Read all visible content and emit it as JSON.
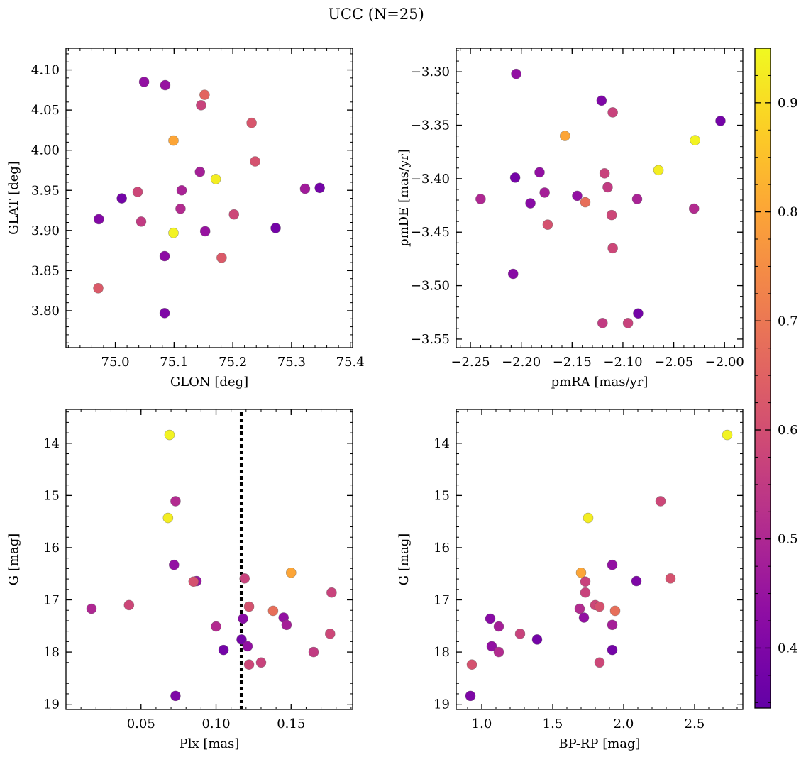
{
  "figure": {
    "title": "UCC (N=25)"
  },
  "colorbar": {
    "range": [
      0.345,
      0.95
    ],
    "ticks": [
      0.4,
      0.5,
      0.6,
      0.7,
      0.8,
      0.9
    ],
    "tick_labels": [
      "0.4",
      "0.5",
      "0.6",
      "0.7",
      "0.8",
      "0.9"
    ],
    "colormap": "plasma"
  },
  "chart_data": [
    {
      "type": "scatter",
      "xlabel": "GLON [deg]",
      "ylabel": "GLAT [deg]",
      "xlim": [
        74.916,
        75.404
      ],
      "ylim": [
        3.754,
        4.127
      ],
      "y_inverted": false,
      "xticks": [
        75.0,
        75.1,
        75.2,
        75.3,
        75.4
      ],
      "xtick_labels": [
        "75.0",
        "75.1",
        "75.2",
        "75.3",
        "75.4"
      ],
      "yticks": [
        3.8,
        3.85,
        3.9,
        3.95,
        4.0,
        4.05,
        4.1
      ],
      "ytick_labels": [
        "3.80",
        "3.85",
        "3.90",
        "3.95",
        "4.00",
        "4.05",
        "4.10"
      ],
      "points": [
        {
          "x": 75.049,
          "y": 4.085,
          "c": 0.44
        },
        {
          "x": 75.085,
          "y": 4.081,
          "c": 0.45
        },
        {
          "x": 75.152,
          "y": 4.069,
          "c": 0.66
        },
        {
          "x": 75.146,
          "y": 4.056,
          "c": 0.57
        },
        {
          "x": 75.232,
          "y": 4.034,
          "c": 0.62
        },
        {
          "x": 75.099,
          "y": 4.012,
          "c": 0.8
        },
        {
          "x": 75.238,
          "y": 3.986,
          "c": 0.61
        },
        {
          "x": 75.144,
          "y": 3.973,
          "c": 0.48
        },
        {
          "x": 75.171,
          "y": 3.964,
          "c": 0.93
        },
        {
          "x": 75.038,
          "y": 3.948,
          "c": 0.58
        },
        {
          "x": 75.113,
          "y": 3.95,
          "c": 0.49
        },
        {
          "x": 75.323,
          "y": 3.952,
          "c": 0.47
        },
        {
          "x": 75.348,
          "y": 3.953,
          "c": 0.38
        },
        {
          "x": 75.011,
          "y": 3.94,
          "c": 0.38
        },
        {
          "x": 74.972,
          "y": 3.914,
          "c": 0.41
        },
        {
          "x": 75.111,
          "y": 3.927,
          "c": 0.51
        },
        {
          "x": 75.202,
          "y": 3.92,
          "c": 0.58
        },
        {
          "x": 75.044,
          "y": 3.911,
          "c": 0.55
        },
        {
          "x": 75.099,
          "y": 3.897,
          "c": 0.94
        },
        {
          "x": 75.153,
          "y": 3.899,
          "c": 0.45
        },
        {
          "x": 75.273,
          "y": 3.903,
          "c": 0.38
        },
        {
          "x": 75.084,
          "y": 3.868,
          "c": 0.43
        },
        {
          "x": 75.181,
          "y": 3.866,
          "c": 0.63
        },
        {
          "x": 74.971,
          "y": 3.828,
          "c": 0.63
        },
        {
          "x": 75.084,
          "y": 3.797,
          "c": 0.4
        }
      ]
    },
    {
      "type": "scatter",
      "xlabel": "pmRA [mas/yr]",
      "ylabel": "pmDE [mas/yr]",
      "xlim": [
        -2.264,
        -1.982
      ],
      "ylim": [
        -3.558,
        -3.278
      ],
      "y_inverted": false,
      "xticks": [
        -2.25,
        -2.2,
        -2.15,
        -2.1,
        -2.05,
        -2.0
      ],
      "xtick_labels": [
        "−2.25",
        "−2.20",
        "−2.15",
        "−2.10",
        "−2.05",
        "−2.00"
      ],
      "yticks": [
        -3.55,
        -3.5,
        -3.45,
        -3.4,
        -3.35,
        -3.3
      ],
      "ytick_labels": [
        "−3.55",
        "−3.50",
        "−3.45",
        "−3.40",
        "−3.35",
        "−3.30"
      ],
      "points": [
        {
          "x": -2.205,
          "y": -3.302,
          "c": 0.44
        },
        {
          "x": -2.121,
          "y": -3.327,
          "c": 0.4
        },
        {
          "x": -2.11,
          "y": -3.338,
          "c": 0.57
        },
        {
          "x": -2.004,
          "y": -3.346,
          "c": 0.38
        },
        {
          "x": -2.157,
          "y": -3.36,
          "c": 0.8
        },
        {
          "x": -2.029,
          "y": -3.364,
          "c": 0.94
        },
        {
          "x": -2.065,
          "y": -3.392,
          "c": 0.93
        },
        {
          "x": -2.182,
          "y": -3.394,
          "c": 0.44
        },
        {
          "x": -2.118,
          "y": -3.395,
          "c": 0.57
        },
        {
          "x": -2.206,
          "y": -3.399,
          "c": 0.38
        },
        {
          "x": -2.115,
          "y": -3.408,
          "c": 0.55
        },
        {
          "x": -2.177,
          "y": -3.413,
          "c": 0.48
        },
        {
          "x": -2.145,
          "y": -3.416,
          "c": 0.44
        },
        {
          "x": -2.24,
          "y": -3.419,
          "c": 0.5
        },
        {
          "x": -2.086,
          "y": -3.419,
          "c": 0.49
        },
        {
          "x": -2.137,
          "y": -3.422,
          "c": 0.68
        },
        {
          "x": -2.191,
          "y": -3.423,
          "c": 0.42
        },
        {
          "x": -2.03,
          "y": -3.428,
          "c": 0.51
        },
        {
          "x": -2.111,
          "y": -3.434,
          "c": 0.58
        },
        {
          "x": -2.174,
          "y": -3.443,
          "c": 0.61
        },
        {
          "x": -2.11,
          "y": -3.465,
          "c": 0.58
        },
        {
          "x": -2.208,
          "y": -3.489,
          "c": 0.42
        },
        {
          "x": -2.085,
          "y": -3.526,
          "c": 0.38
        },
        {
          "x": -2.12,
          "y": -3.535,
          "c": 0.55
        },
        {
          "x": -2.095,
          "y": -3.535,
          "c": 0.57
        }
      ]
    },
    {
      "type": "scatter",
      "xlabel": "Plx [mas]",
      "ylabel": "G [mag]",
      "xlim": [
        0.0,
        0.191
      ],
      "ylim": [
        13.35,
        19.1
      ],
      "y_inverted": true,
      "vline": 0.117,
      "xticks": [
        0.05,
        0.1,
        0.15
      ],
      "xtick_labels": [
        "0.05",
        "0.10",
        "0.15"
      ],
      "yticks": [
        14,
        15,
        16,
        17,
        18,
        19
      ],
      "ytick_labels": [
        "14",
        "15",
        "16",
        "17",
        "18",
        "19"
      ],
      "points": [
        {
          "x": 0.069,
          "y": 13.84,
          "c": 0.94
        },
        {
          "x": 0.073,
          "y": 15.11,
          "c": 0.51
        },
        {
          "x": 0.068,
          "y": 15.43,
          "c": 0.93
        },
        {
          "x": 0.072,
          "y": 16.33,
          "c": 0.44
        },
        {
          "x": 0.087,
          "y": 16.64,
          "c": 0.45
        },
        {
          "x": 0.085,
          "y": 16.65,
          "c": 0.61
        },
        {
          "x": 0.15,
          "y": 16.48,
          "c": 0.8
        },
        {
          "x": 0.119,
          "y": 16.59,
          "c": 0.57
        },
        {
          "x": 0.177,
          "y": 16.86,
          "c": 0.57
        },
        {
          "x": 0.017,
          "y": 17.17,
          "c": 0.5
        },
        {
          "x": 0.042,
          "y": 17.1,
          "c": 0.58
        },
        {
          "x": 0.122,
          "y": 17.13,
          "c": 0.61
        },
        {
          "x": 0.138,
          "y": 17.21,
          "c": 0.68
        },
        {
          "x": 0.145,
          "y": 17.34,
          "c": 0.44
        },
        {
          "x": 0.118,
          "y": 17.36,
          "c": 0.42
        },
        {
          "x": 0.147,
          "y": 17.48,
          "c": 0.48
        },
        {
          "x": 0.1,
          "y": 17.51,
          "c": 0.51
        },
        {
          "x": 0.176,
          "y": 17.65,
          "c": 0.58
        },
        {
          "x": 0.117,
          "y": 17.76,
          "c": 0.38
        },
        {
          "x": 0.121,
          "y": 17.89,
          "c": 0.44
        },
        {
          "x": 0.105,
          "y": 17.96,
          "c": 0.38
        },
        {
          "x": 0.165,
          "y": 18.0,
          "c": 0.55
        },
        {
          "x": 0.13,
          "y": 18.2,
          "c": 0.57
        },
        {
          "x": 0.122,
          "y": 18.24,
          "c": 0.58
        },
        {
          "x": 0.073,
          "y": 18.84,
          "c": 0.4
        }
      ]
    },
    {
      "type": "scatter",
      "xlabel": "BP-RP [mag]",
      "ylabel": "G [mag]",
      "xlim": [
        0.82,
        2.84
      ],
      "ylim": [
        13.35,
        19.1
      ],
      "y_inverted": true,
      "xticks": [
        1.0,
        1.5,
        2.0,
        2.5
      ],
      "xtick_labels": [
        "1.0",
        "1.5",
        "2.0",
        "2.5"
      ],
      "yticks": [
        14,
        15,
        16,
        17,
        18,
        19
      ],
      "ytick_labels": [
        "14",
        "15",
        "16",
        "17",
        "18",
        "19"
      ],
      "points": [
        {
          "x": 2.73,
          "y": 13.84,
          "c": 0.94
        },
        {
          "x": 2.26,
          "y": 15.11,
          "c": 0.58
        },
        {
          "x": 1.75,
          "y": 15.43,
          "c": 0.93
        },
        {
          "x": 1.92,
          "y": 16.33,
          "c": 0.44
        },
        {
          "x": 1.7,
          "y": 16.48,
          "c": 0.8
        },
        {
          "x": 2.33,
          "y": 16.59,
          "c": 0.61
        },
        {
          "x": 2.09,
          "y": 16.64,
          "c": 0.4
        },
        {
          "x": 1.73,
          "y": 16.65,
          "c": 0.57
        },
        {
          "x": 1.73,
          "y": 16.86,
          "c": 0.57
        },
        {
          "x": 1.8,
          "y": 17.1,
          "c": 0.58
        },
        {
          "x": 1.83,
          "y": 17.13,
          "c": 0.61
        },
        {
          "x": 1.69,
          "y": 17.17,
          "c": 0.51
        },
        {
          "x": 1.94,
          "y": 17.21,
          "c": 0.68
        },
        {
          "x": 1.72,
          "y": 17.34,
          "c": 0.44
        },
        {
          "x": 1.06,
          "y": 17.36,
          "c": 0.42
        },
        {
          "x": 1.92,
          "y": 17.48,
          "c": 0.48
        },
        {
          "x": 1.12,
          "y": 17.51,
          "c": 0.48
        },
        {
          "x": 1.27,
          "y": 17.65,
          "c": 0.57
        },
        {
          "x": 1.39,
          "y": 17.76,
          "c": 0.38
        },
        {
          "x": 1.07,
          "y": 17.89,
          "c": 0.44
        },
        {
          "x": 1.92,
          "y": 17.96,
          "c": 0.38
        },
        {
          "x": 1.12,
          "y": 18.0,
          "c": 0.51
        },
        {
          "x": 1.83,
          "y": 18.2,
          "c": 0.58
        },
        {
          "x": 0.93,
          "y": 18.24,
          "c": 0.61
        },
        {
          "x": 0.92,
          "y": 18.84,
          "c": 0.4
        }
      ]
    }
  ]
}
